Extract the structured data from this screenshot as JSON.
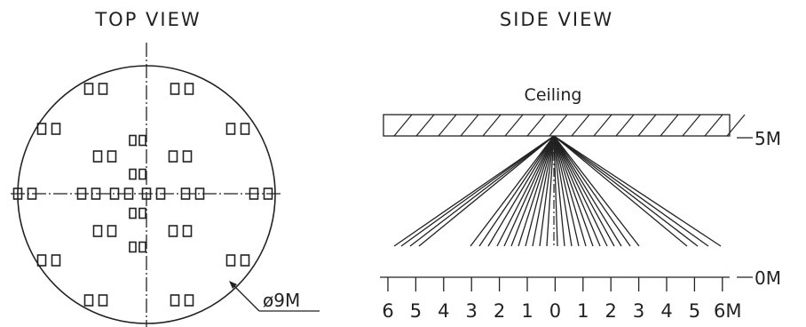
{
  "top_view": {
    "title": "TOP VIEW",
    "diameter_label": "ø9M"
  },
  "side_view": {
    "title": "SIDE VIEW",
    "ceiling_label": "Ceiling",
    "height_top_label": "5M",
    "height_bottom_label": "0M",
    "scale_labels": [
      "6",
      "5",
      "4",
      "3",
      "2",
      "1",
      "0",
      "1",
      "2",
      "3",
      "4",
      "5",
      "6M"
    ]
  },
  "colors": {
    "line": "#222222",
    "background": "#ffffff"
  }
}
